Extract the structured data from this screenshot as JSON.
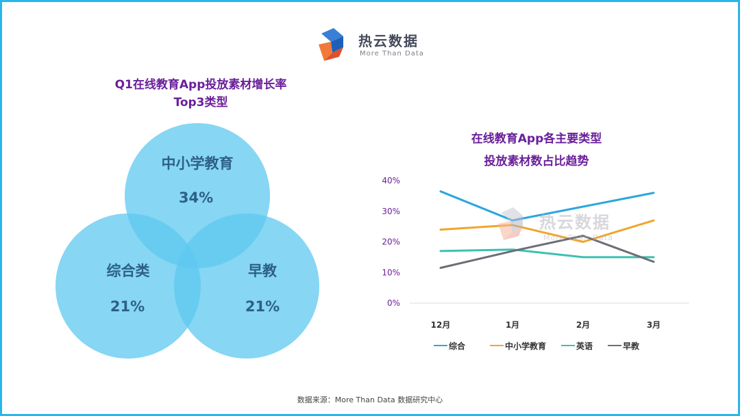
{
  "brand": {
    "name": "热云数据",
    "tagline": "More Than Data"
  },
  "venn": {
    "title_line1": "Q1在线教育App投放素材增长率",
    "title_line2": "Top3类型",
    "circles": [
      {
        "label": "中小学教育",
        "value": "34%"
      },
      {
        "label": "综合类",
        "value": "21%"
      },
      {
        "label": "早教",
        "value": "21%"
      }
    ]
  },
  "chart_data": {
    "type": "line",
    "title_line1": "在线教育App各主要类型",
    "title_line2": "投放素材数占比趋势",
    "categories": [
      "12月",
      "1月",
      "2月",
      "3月"
    ],
    "ylim": [
      0,
      40
    ],
    "yticks": [
      "0%",
      "10%",
      "20%",
      "30%",
      "40%"
    ],
    "ytick_values": [
      0,
      10,
      20,
      30,
      40
    ],
    "legend_position": "bottom",
    "series": [
      {
        "name": "综合",
        "color": "#2aa7dd",
        "values": [
          36.5,
          27,
          31.5,
          36
        ]
      },
      {
        "name": "中小学教育",
        "color": "#f0a52a",
        "values": [
          24,
          25.5,
          20,
          27
        ]
      },
      {
        "name": "英语",
        "color": "#3cc0b0",
        "values": [
          17,
          17.5,
          15,
          15
        ]
      },
      {
        "name": "早教",
        "color": "#6b6e74",
        "values": [
          11.5,
          17,
          22,
          13.5
        ]
      }
    ]
  },
  "source": "数据来源：More Than Data 数据研究中心",
  "colors": {
    "title": "#6a1f9a",
    "border": "#29b6e8",
    "axis_label": "#6a1f9a"
  }
}
